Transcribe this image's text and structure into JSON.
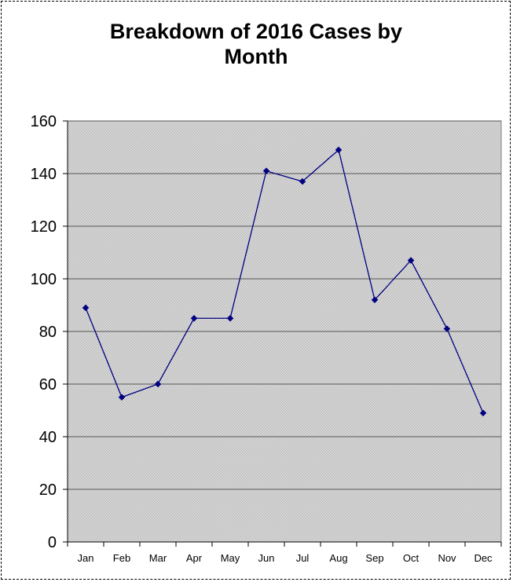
{
  "chart_data": {
    "type": "line",
    "title": "Breakdown of 2016 Cases by\nMonth",
    "xlabel": "",
    "ylabel": "",
    "categories": [
      "Jan",
      "Feb",
      "Mar",
      "Apr",
      "May",
      "Jun",
      "Jul",
      "Aug",
      "Sep",
      "Oct",
      "Nov",
      "Dec"
    ],
    "values": [
      89,
      55,
      60,
      85,
      85,
      141,
      137,
      149,
      92,
      107,
      81,
      49
    ],
    "ylim": [
      0,
      160
    ],
    "yticks": [
      0,
      20,
      40,
      60,
      80,
      100,
      120,
      140,
      160
    ],
    "grid": true,
    "legend": "none",
    "colors": {
      "line": "#000080",
      "plot_background": "#c0c0c0",
      "gridline": "#555555"
    }
  }
}
